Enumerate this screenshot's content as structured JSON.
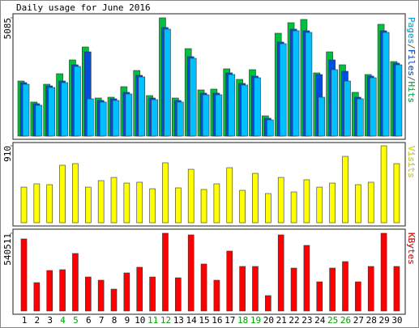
{
  "chart_data": {
    "type": "bar",
    "title": "Daily usage for June 2016",
    "categories": [
      "1",
      "2",
      "3",
      "4",
      "5",
      "6",
      "7",
      "8",
      "9",
      "10",
      "11",
      "12",
      "13",
      "14",
      "15",
      "16",
      "17",
      "18",
      "19",
      "20",
      "21",
      "22",
      "23",
      "24",
      "25",
      "26",
      "27",
      "28",
      "29",
      "30"
    ],
    "category_colors": [
      "#000000",
      "#000000",
      "#000000",
      "#00a000",
      "#00a000",
      "#000000",
      "#000000",
      "#000000",
      "#000000",
      "#000000",
      "#00a000",
      "#00a000",
      "#000000",
      "#000000",
      "#000000",
      "#000000",
      "#000000",
      "#00a000",
      "#00a000",
      "#000000",
      "#000000",
      "#000000",
      "#000000",
      "#000000",
      "#00a000",
      "#00a000",
      "#000000",
      "#000000",
      "#000000",
      "#000000"
    ],
    "legend_separator": "/",
    "panels": [
      {
        "ylim": [
          0,
          5085
        ],
        "yticks": [
          5085
        ],
        "series": [
          {
            "name": "Hits",
            "color": "#00c040",
            "values": [
              2368,
              1463,
              2229,
              2682,
              3274,
              3831,
              1637,
              1672,
              2125,
              2821,
              1741,
              5085,
              1637,
              3761,
              1985,
              2020,
              2891,
              2438,
              2856,
              871,
              4423,
              4876,
              5015,
              2717,
              3622,
              3065,
              1881,
              2647,
              4806,
              3204
            ]
          },
          {
            "name": "Files",
            "color": "#0050e0",
            "values": [
              2299,
              1394,
              2160,
              2369,
              3065,
              3622,
              1533,
              1603,
              1881,
              2613,
              1637,
              4668,
              1533,
              3414,
              1846,
              1846,
              2717,
              2264,
              2578,
              767,
              4041,
              4598,
              4528,
              2647,
              3274,
              2786,
              1672,
              2578,
              4528,
              3135
            ]
          },
          {
            "name": "Pages",
            "color": "#00c0ff",
            "values": [
              2229,
              1324,
              2090,
              2299,
              2995,
              1602,
              1463,
              1533,
              1811,
              2543,
              1567,
              4598,
              1463,
              3344,
              1776,
              1776,
              2647,
              2194,
              2508,
              697,
              3971,
              4528,
              4458,
              1672,
              2856,
              2368,
              1602,
              2508,
              4458,
              3065
            ]
          }
        ]
      },
      {
        "ylim": [
          0,
          910
        ],
        "yticks": [
          910
        ],
        "series": [
          {
            "name": "Visits",
            "color": "#ffff00",
            "values": [
              421,
              460,
              450,
              680,
              699,
              421,
              498,
              536,
              469,
              479,
              402,
              709,
              412,
              632,
              393,
              460,
              651,
              383,
              584,
              345,
              536,
              364,
              508,
              421,
              469,
              785,
              450,
              479,
              910,
              699
            ]
          }
        ]
      },
      {
        "ylim": [
          0,
          540511
        ],
        "yticks": [
          540511
        ],
        "series": [
          {
            "name": "KBytes",
            "color": "#ff0000",
            "values": [
              501070,
              197050,
              281500,
              287130,
              399730,
              236460,
              213940,
              152010,
              264610,
              304020,
              236460,
              540511,
              230830,
              529220,
              326540,
              213940,
              416620,
              309650,
              309650,
              106970,
              529220,
              298390,
              456030,
              202680,
              298390,
              343430,
              202680,
              309650,
              540511,
              309650
            ]
          }
        ]
      }
    ]
  }
}
